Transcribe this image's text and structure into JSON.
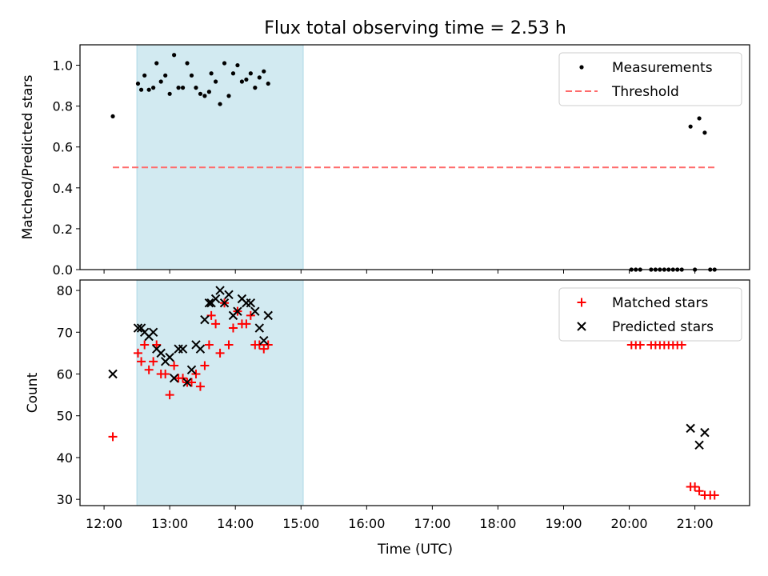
{
  "title": "Flux total observing time = 2.53 h",
  "xlabel": "Time (UTC)",
  "colors": {
    "shade": "#add8e6",
    "measurement": "#000000",
    "threshold": "#ff6b6b",
    "matched": "#ff0000",
    "predicted": "#000000"
  },
  "chart_data": [
    {
      "type": "scatter",
      "panel": "top",
      "ylabel": "Matched/Predicted stars",
      "ylim": [
        0,
        1.1
      ],
      "yticks": [
        "0.0",
        "0.2",
        "0.4",
        "0.6",
        "0.8",
        "1.0"
      ],
      "xlim": [
        "11:38",
        "21:50"
      ],
      "xticks": [
        "12:00",
        "13:00",
        "14:00",
        "15:00",
        "16:00",
        "17:00",
        "18:00",
        "19:00",
        "20:00",
        "21:00"
      ],
      "shaded_span": [
        "12:30",
        "15:02"
      ],
      "legend": {
        "position": "top-right",
        "entries": [
          "Measurements",
          "Threshold"
        ]
      },
      "threshold": {
        "name": "Threshold",
        "value": 0.5,
        "x_range": [
          "12:08",
          "21:20"
        ]
      },
      "series": [
        {
          "name": "Measurements",
          "marker": "dot",
          "points": [
            [
              "12:08",
              0.75
            ],
            [
              "12:31",
              0.91
            ],
            [
              "12:34",
              0.88
            ],
            [
              "12:37",
              0.95
            ],
            [
              "12:41",
              0.88
            ],
            [
              "12:45",
              0.89
            ],
            [
              "12:48",
              1.01
            ],
            [
              "12:52",
              0.92
            ],
            [
              "12:56",
              0.95
            ],
            [
              "13:00",
              0.86
            ],
            [
              "13:04",
              1.05
            ],
            [
              "13:08",
              0.89
            ],
            [
              "13:12",
              0.89
            ],
            [
              "13:16",
              1.01
            ],
            [
              "13:20",
              0.95
            ],
            [
              "13:24",
              0.89
            ],
            [
              "13:28",
              0.86
            ],
            [
              "13:32",
              0.85
            ],
            [
              "13:36",
              0.87
            ],
            [
              "13:38",
              0.96
            ],
            [
              "13:42",
              0.92
            ],
            [
              "13:46",
              0.81
            ],
            [
              "13:50",
              1.01
            ],
            [
              "13:54",
              0.85
            ],
            [
              "13:58",
              0.96
            ],
            [
              "14:02",
              1.0
            ],
            [
              "14:06",
              0.92
            ],
            [
              "14:10",
              0.93
            ],
            [
              "14:14",
              0.96
            ],
            [
              "14:18",
              0.89
            ],
            [
              "14:22",
              0.94
            ],
            [
              "14:26",
              0.97
            ],
            [
              "14:30",
              0.91
            ],
            [
              "20:02",
              0.0
            ],
            [
              "20:06",
              0.0
            ],
            [
              "20:10",
              0.0
            ],
            [
              "20:20",
              0.0
            ],
            [
              "20:24",
              0.0
            ],
            [
              "20:28",
              0.0
            ],
            [
              "20:32",
              0.0
            ],
            [
              "20:36",
              0.0
            ],
            [
              "20:40",
              0.0
            ],
            [
              "20:44",
              0.0
            ],
            [
              "20:48",
              0.0
            ],
            [
              "20:56",
              0.7
            ],
            [
              "21:00",
              0.0
            ],
            [
              "21:04",
              0.74
            ],
            [
              "21:09",
              0.67
            ],
            [
              "21:14",
              0.0
            ],
            [
              "21:18",
              0.0
            ]
          ]
        }
      ]
    },
    {
      "type": "scatter",
      "panel": "bottom",
      "ylabel": "Count",
      "ylim": [
        28.5,
        82.5
      ],
      "yticks": [
        "30",
        "40",
        "50",
        "60",
        "70",
        "80"
      ],
      "xlim": [
        "11:38",
        "21:50"
      ],
      "xticks": [
        "12:00",
        "13:00",
        "14:00",
        "15:00",
        "16:00",
        "17:00",
        "18:00",
        "19:00",
        "20:00",
        "21:00"
      ],
      "shaded_span": [
        "12:30",
        "15:02"
      ],
      "legend": {
        "position": "top-right",
        "entries": [
          "Matched stars",
          "Predicted stars"
        ]
      },
      "series": [
        {
          "name": "Matched stars",
          "marker": "plus",
          "points": [
            [
              "12:08",
              45
            ],
            [
              "12:31",
              65
            ],
            [
              "12:34",
              63
            ],
            [
              "12:37",
              67
            ],
            [
              "12:41",
              61
            ],
            [
              "12:45",
              63
            ],
            [
              "12:48",
              67
            ],
            [
              "12:52",
              60
            ],
            [
              "12:56",
              60
            ],
            [
              "13:00",
              55
            ],
            [
              "13:04",
              62
            ],
            [
              "13:08",
              59
            ],
            [
              "13:12",
              59
            ],
            [
              "13:16",
              58
            ],
            [
              "13:20",
              58
            ],
            [
              "13:24",
              60
            ],
            [
              "13:28",
              57
            ],
            [
              "13:32",
              62
            ],
            [
              "13:36",
              67
            ],
            [
              "13:38",
              74
            ],
            [
              "13:42",
              72
            ],
            [
              "13:46",
              65
            ],
            [
              "13:50",
              77
            ],
            [
              "13:54",
              67
            ],
            [
              "13:58",
              71
            ],
            [
              "14:02",
              75
            ],
            [
              "14:06",
              72
            ],
            [
              "14:10",
              72
            ],
            [
              "14:14",
              74
            ],
            [
              "14:18",
              67
            ],
            [
              "14:22",
              67
            ],
            [
              "14:26",
              66
            ],
            [
              "14:30",
              67
            ],
            [
              "20:02",
              67
            ],
            [
              "20:06",
              67
            ],
            [
              "20:10",
              67
            ],
            [
              "20:20",
              67
            ],
            [
              "20:24",
              67
            ],
            [
              "20:28",
              67
            ],
            [
              "20:32",
              67
            ],
            [
              "20:36",
              67
            ],
            [
              "20:40",
              67
            ],
            [
              "20:44",
              67
            ],
            [
              "20:48",
              67
            ],
            [
              "20:56",
              33
            ],
            [
              "21:00",
              33
            ],
            [
              "21:04",
              32
            ],
            [
              "21:09",
              31
            ],
            [
              "21:14",
              31
            ],
            [
              "21:18",
              31
            ]
          ]
        },
        {
          "name": "Predicted stars",
          "marker": "x",
          "points": [
            [
              "12:08",
              60
            ],
            [
              "12:31",
              71
            ],
            [
              "12:34",
              71
            ],
            [
              "12:37",
              70
            ],
            [
              "12:41",
              69
            ],
            [
              "12:45",
              70
            ],
            [
              "12:48",
              66
            ],
            [
              "12:52",
              65
            ],
            [
              "12:56",
              63
            ],
            [
              "13:00",
              64
            ],
            [
              "13:04",
              59
            ],
            [
              "13:08",
              66
            ],
            [
              "13:12",
              66
            ],
            [
              "13:16",
              58
            ],
            [
              "13:20",
              61
            ],
            [
              "13:24",
              67
            ],
            [
              "13:28",
              66
            ],
            [
              "13:32",
              73
            ],
            [
              "13:36",
              77
            ],
            [
              "13:38",
              77
            ],
            [
              "13:42",
              78
            ],
            [
              "13:46",
              80
            ],
            [
              "13:50",
              77
            ],
            [
              "13:54",
              79
            ],
            [
              "13:58",
              74
            ],
            [
              "14:02",
              75
            ],
            [
              "14:06",
              78
            ],
            [
              "14:10",
              77
            ],
            [
              "14:14",
              77
            ],
            [
              "14:18",
              75
            ],
            [
              "14:22",
              71
            ],
            [
              "14:26",
              68
            ],
            [
              "14:30",
              74
            ],
            [
              "20:56",
              47
            ],
            [
              "21:04",
              43
            ],
            [
              "21:09",
              46
            ]
          ]
        }
      ]
    }
  ]
}
